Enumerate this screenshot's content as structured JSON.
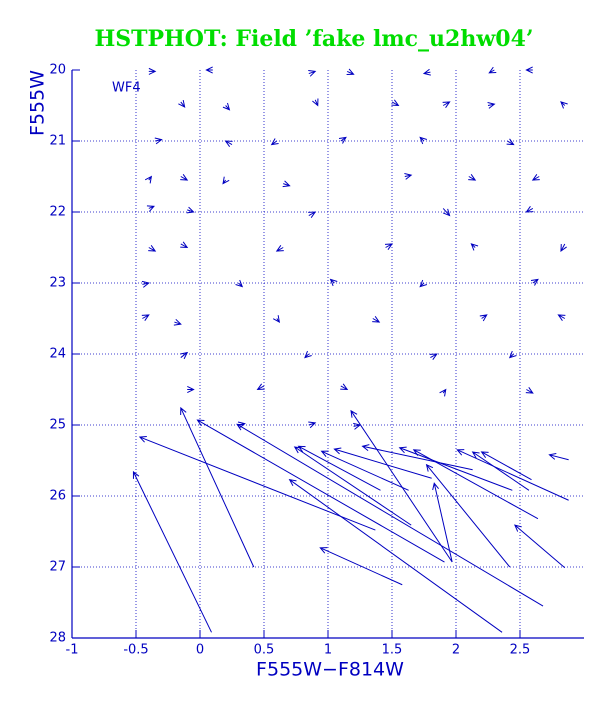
{
  "chart_data": {
    "type": "vector",
    "title": "HSTPHOT: Field ’fake lmc_u2hw04’",
    "annotation": "WF4",
    "x_label": "F555W−F814W",
    "y_label": "F555W",
    "xlim": [
      -1,
      3
    ],
    "ylim": [
      28,
      20
    ],
    "xticks": [
      -1,
      -0.5,
      0,
      0.5,
      1,
      1.5,
      2,
      2.5
    ],
    "yticks": [
      20,
      21,
      22,
      23,
      24,
      25,
      26,
      27,
      28
    ],
    "grid": true,
    "color": "#0000c0",
    "title_color": "#00dd00",
    "series": [
      {
        "x": [
          0.09,
          0.42,
          1.91,
          1.37,
          2.68,
          2.36,
          1.58,
          1.97,
          1.97,
          1.65,
          1.41,
          1.63,
          1.81,
          2.13,
          2.44,
          2.64,
          2.42,
          2.85,
          2.88,
          2.57,
          2.88,
          2.59,
          -0.4,
          0.1,
          0.85,
          1.15,
          1.8,
          2.3,
          2.6,
          -0.15,
          0.2,
          0.9,
          1.5,
          1.9,
          2.25,
          2.85,
          -0.35,
          0.25,
          0.6,
          1.1,
          1.75,
          2.4,
          -0.4,
          -0.15,
          0.2,
          0.65,
          1.6,
          2.1,
          2.65,
          -0.4,
          -0.1,
          0.85,
          1.9,
          2.6,
          -0.4,
          -0.15,
          0.65,
          1.45,
          2.15,
          2.85,
          -0.45,
          0.3,
          1.05,
          1.75,
          2.6,
          -0.45,
          -0.2,
          0.6,
          1.35,
          2.2,
          2.85,
          -0.15,
          0.85,
          1.8,
          2.45,
          -0.1,
          0.5,
          1.1,
          1.9,
          2.55,
          0.3,
          0.85,
          1.2
        ],
        "y": [
          27.92,
          27.0,
          26.93,
          26.48,
          27.55,
          27.92,
          27.25,
          26.93,
          26.93,
          26.41,
          25.92,
          25.92,
          25.75,
          25.63,
          25.92,
          26.32,
          27.0,
          27.01,
          26.06,
          25.92,
          25.49,
          25.77,
          20.02,
          20.0,
          20.05,
          20.02,
          20.03,
          20.0,
          20.0,
          20.45,
          20.5,
          20.42,
          20.45,
          20.5,
          20.5,
          20.5,
          21.0,
          21.05,
          21.0,
          21.0,
          21.0,
          21.0,
          21.55,
          21.5,
          21.55,
          21.6,
          21.5,
          21.5,
          21.5,
          21.95,
          21.97,
          22.05,
          21.95,
          21.95,
          22.5,
          22.45,
          22.5,
          22.5,
          22.5,
          22.45,
          23.02,
          23.0,
          23.0,
          23.0,
          23.0,
          23.5,
          23.55,
          23.5,
          23.5,
          23.5,
          23.5,
          24.05,
          24.0,
          24.05,
          24.0,
          24.5,
          24.45,
          24.45,
          24.55,
          24.5,
          25.0,
          25.0,
          25.02
        ],
        "x_end": [
          -0.52,
          -0.15,
          -0.02,
          -0.47,
          0.29,
          0.7,
          0.94,
          1.18,
          1.83,
          0.74,
          0.77,
          0.95,
          1.05,
          1.27,
          1.56,
          1.67,
          1.77,
          2.46,
          2.01,
          2.13,
          2.73,
          2.2,
          -0.35,
          0.05,
          0.9,
          1.2,
          1.75,
          2.26,
          2.55,
          -0.12,
          0.23,
          0.92,
          1.55,
          1.95,
          2.3,
          2.82,
          -0.3,
          0.2,
          0.56,
          1.14,
          1.72,
          2.45,
          -0.38,
          -0.1,
          0.18,
          0.7,
          1.65,
          2.15,
          2.6,
          -0.36,
          -0.05,
          0.9,
          1.95,
          2.55,
          -0.35,
          -0.1,
          0.6,
          1.5,
          2.12,
          2.82,
          -0.4,
          0.33,
          1.02,
          1.72,
          2.64,
          -0.4,
          -0.15,
          0.62,
          1.4,
          2.24,
          2.8,
          -0.1,
          0.82,
          1.85,
          2.42,
          -0.05,
          0.45,
          1.15,
          1.92,
          2.6,
          0.35,
          0.9,
          1.25
        ],
        "y_end": [
          25.66,
          24.76,
          24.93,
          25.17,
          24.99,
          25.77,
          26.73,
          24.8,
          25.82,
          25.31,
          25.3,
          25.37,
          25.34,
          25.3,
          25.32,
          25.35,
          25.56,
          26.41,
          25.35,
          25.38,
          25.42,
          25.38,
          20.02,
          20.0,
          20.02,
          20.06,
          20.05,
          20.04,
          20.0,
          20.52,
          20.56,
          20.5,
          20.5,
          20.45,
          20.48,
          20.45,
          20.98,
          21.0,
          21.05,
          20.95,
          20.95,
          21.05,
          21.5,
          21.55,
          21.6,
          21.63,
          21.48,
          21.55,
          21.55,
          21.92,
          22.0,
          22.0,
          22.05,
          22.0,
          22.55,
          22.5,
          22.55,
          22.45,
          22.45,
          22.55,
          23.0,
          23.05,
          22.95,
          23.05,
          22.95,
          23.45,
          23.58,
          23.55,
          23.55,
          23.45,
          23.45,
          23.98,
          24.05,
          24.0,
          24.05,
          24.5,
          24.5,
          24.5,
          24.5,
          24.55,
          24.98,
          24.97,
          25.0
        ]
      }
    ]
  }
}
